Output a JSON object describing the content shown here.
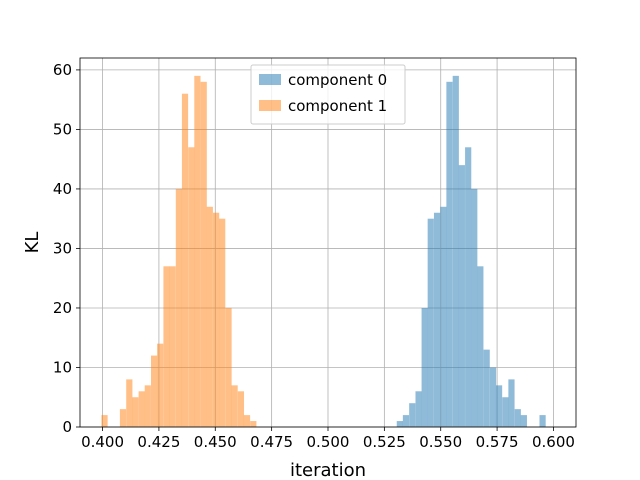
{
  "chart_data": {
    "type": "bar",
    "subtype": "histogram",
    "xlabel": "iteration",
    "ylabel": "KL",
    "xlim": [
      0.39,
      0.61
    ],
    "ylim": [
      0,
      62
    ],
    "bin_width": 0.00275,
    "x_ticks": [
      {
        "value": 0.4,
        "label": "0.400"
      },
      {
        "value": 0.425,
        "label": "0.425"
      },
      {
        "value": 0.45,
        "label": "0.450"
      },
      {
        "value": 0.475,
        "label": "0.475"
      },
      {
        "value": 0.5,
        "label": "0.500"
      },
      {
        "value": 0.525,
        "label": "0.525"
      },
      {
        "value": 0.55,
        "label": "0.550"
      },
      {
        "value": 0.575,
        "label": "0.575"
      },
      {
        "value": 0.6,
        "label": "0.600"
      }
    ],
    "y_ticks": [
      {
        "value": 0,
        "label": "0"
      },
      {
        "value": 10,
        "label": "10"
      },
      {
        "value": 20,
        "label": "20"
      },
      {
        "value": 30,
        "label": "30"
      },
      {
        "value": 40,
        "label": "40"
      },
      {
        "value": 50,
        "label": "50"
      },
      {
        "value": 60,
        "label": "60"
      }
    ],
    "grid": true,
    "legend_position": "top-center",
    "series": [
      {
        "name": "component 0",
        "color": "#1f77b4",
        "alpha": 0.5,
        "bins": [
          [
            0.5305,
            1
          ],
          [
            0.5332,
            2
          ],
          [
            0.536,
            4
          ],
          [
            0.5388,
            6
          ],
          [
            0.5415,
            20
          ],
          [
            0.5442,
            35
          ],
          [
            0.547,
            36
          ],
          [
            0.5498,
            37
          ],
          [
            0.5525,
            58
          ],
          [
            0.5553,
            59
          ],
          [
            0.558,
            44
          ],
          [
            0.5608,
            47
          ],
          [
            0.5635,
            40
          ],
          [
            0.5662,
            27
          ],
          [
            0.569,
            13
          ],
          [
            0.5718,
            10
          ],
          [
            0.5745,
            7
          ],
          [
            0.5773,
            5
          ],
          [
            0.58,
            8
          ],
          [
            0.5828,
            3
          ],
          [
            0.5855,
            2
          ],
          [
            0.5882,
            0
          ],
          [
            0.591,
            0
          ],
          [
            0.5938,
            2
          ]
        ]
      },
      {
        "name": "component 1",
        "color": "#ff7f0e",
        "alpha": 0.5,
        "bins": [
          [
            0.3995,
            2
          ],
          [
            0.4022,
            0
          ],
          [
            0.405,
            0
          ],
          [
            0.4077,
            3
          ],
          [
            0.4105,
            8
          ],
          [
            0.4132,
            5
          ],
          [
            0.416,
            6
          ],
          [
            0.4187,
            7
          ],
          [
            0.4215,
            12
          ],
          [
            0.4242,
            14
          ],
          [
            0.427,
            27
          ],
          [
            0.4297,
            27
          ],
          [
            0.4325,
            40
          ],
          [
            0.4352,
            56
          ],
          [
            0.438,
            47
          ],
          [
            0.4407,
            59
          ],
          [
            0.4435,
            58
          ],
          [
            0.4462,
            37
          ],
          [
            0.449,
            36
          ],
          [
            0.4517,
            35
          ],
          [
            0.4545,
            20
          ],
          [
            0.4572,
            7
          ],
          [
            0.46,
            6
          ],
          [
            0.4627,
            2
          ],
          [
            0.4655,
            1
          ]
        ]
      }
    ]
  }
}
